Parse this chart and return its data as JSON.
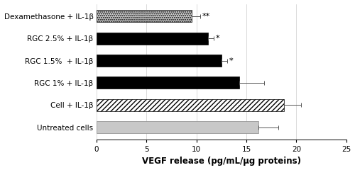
{
  "categories": [
    "Dexamethasone + IL-1β",
    "RGC 2.5% + IL-1β",
    "RGC 1.5%  + IL-1β",
    "RGC 1% + IL-1β",
    "Cell + IL-1β",
    "Untreated cells"
  ],
  "values": [
    9.5,
    11.2,
    12.5,
    14.3,
    18.8,
    16.2
  ],
  "errors": [
    0.9,
    0.5,
    0.6,
    2.5,
    1.7,
    2.0
  ],
  "bar_styles": [
    "dotted",
    "black",
    "black",
    "black",
    "hatch",
    "lightgray"
  ],
  "annotations": [
    "**",
    "*",
    "*",
    "",
    "",
    ""
  ],
  "xlabel": "VEGF release (pg/mL/μg proteins)",
  "xlim": [
    0,
    25
  ],
  "xticks": [
    0,
    5,
    10,
    15,
    20,
    25
  ],
  "bar_height": 0.55,
  "annotation_fontsize": 8,
  "label_fontsize": 7.5,
  "xlabel_fontsize": 8.5,
  "tick_fontsize": 7.5
}
